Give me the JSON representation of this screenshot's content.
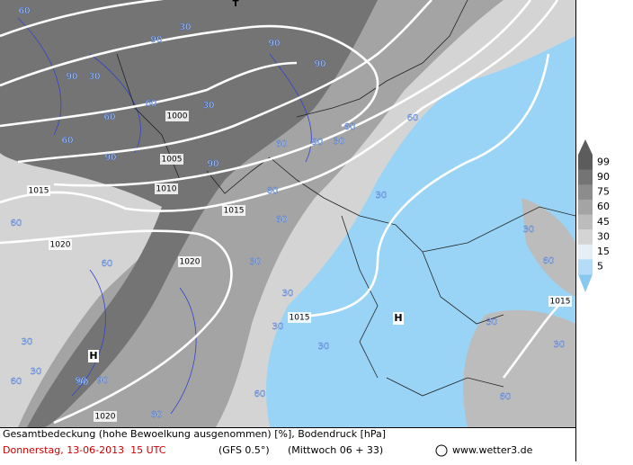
{
  "map": {
    "marker_top": "T",
    "isobar_labels": [
      "1000",
      "1005",
      "1010",
      "1015",
      "1015",
      "1020",
      "1020",
      "1015",
      "1015",
      "1020"
    ],
    "high_labels": [
      "H",
      "H"
    ],
    "cloud_labels": [
      "60",
      "30",
      "90",
      "90",
      "30",
      "60",
      "90",
      "90",
      "60",
      "90",
      "30",
      "60",
      "90",
      "60",
      "90",
      "60",
      "30",
      "60",
      "60",
      "30",
      "60",
      "90",
      "60",
      "60",
      "30",
      "30",
      "30",
      "30",
      "60",
      "90",
      "90",
      "60",
      "30",
      "30",
      "60",
      "30",
      "30",
      "60",
      "30",
      "60"
    ]
  },
  "legend": {
    "levels": [
      "99",
      "90",
      "75",
      "60",
      "45",
      "30",
      "15",
      "5"
    ],
    "colors": [
      "#5c5c5c",
      "#747474",
      "#8c8c8c",
      "#a4a4a4",
      "#bcbcbc",
      "#d4d4d4",
      "#e6eef6",
      "#b4dcf8"
    ]
  },
  "footer": {
    "description": "Gesamtbedeckung (hohe Bewoelkung ausgenommen) [%], Bodendruck [hPa]",
    "date": "Donnerstag, 13-06-2013  15 UTC",
    "model": "(GFS 0.5°)",
    "run": "(Mittwoch 06 + 33)",
    "source": "www.wetter3.de"
  }
}
